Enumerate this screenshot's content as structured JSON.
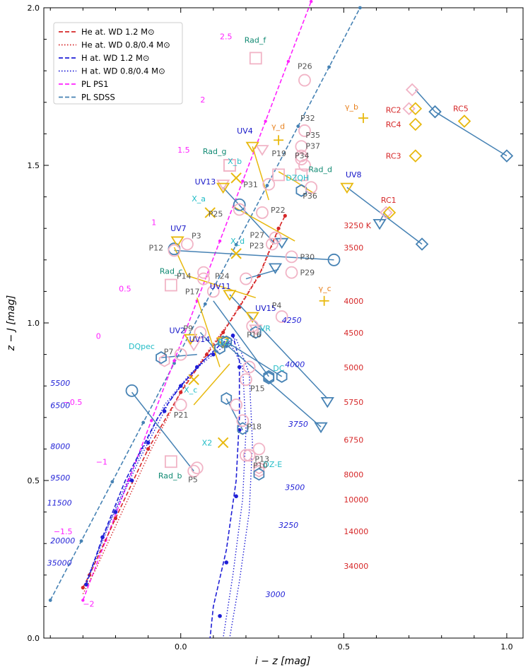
{
  "chart_data": {
    "type": "scatter",
    "xlabel": "i − z  [mag]",
    "ylabel": "z − J  [mag]",
    "xlim": [
      -0.42,
      1.05
    ],
    "ylim": [
      0.0,
      2.0
    ],
    "x_ticks": [
      "0.0",
      "0.5",
      "1.0"
    ],
    "x_tick_values": [
      0,
      0.5,
      1.0
    ],
    "y_ticks": [
      "0.0",
      "0.5",
      "1.0",
      "1.5",
      "2.0"
    ],
    "y_tick_values": [
      0,
      0.5,
      1.0,
      1.5,
      2.0
    ],
    "legend_position": "top-left",
    "legend": [
      {
        "label": "He at. WD 1.2 M⊙",
        "color": "#d62728",
        "dash": "dashed"
      },
      {
        "label": "He at. WD 0.8/0.4 M⊙",
        "color": "#d62728",
        "dash": "dotted"
      },
      {
        "label": "H at. WD 1.2 M⊙",
        "color": "#1f1fd6",
        "dash": "dashed"
      },
      {
        "label": "H at. WD 0.8/0.4 M⊙",
        "color": "#1f1fd6",
        "dash": "dotted"
      },
      {
        "label": "PL PS1",
        "color": "#ff22ff",
        "dash": "dashed"
      },
      {
        "label": "PL SDSS",
        "color": "#4682b4",
        "dash": "dashed"
      }
    ],
    "colors": {
      "he": "#d62728",
      "h": "#1f1fd6",
      "ps1": "#ff22ff",
      "sdss": "#4682b4",
      "uv": "#1515c8",
      "rad": "#118a73",
      "cyan": "#22bcc6",
      "gamma": "#e8821f",
      "yellow": "#e8b90f",
      "pink": "#f1b4c6",
      "steel": "#4682b4",
      "rc": "#d62728",
      "gray": "#555555"
    },
    "series": [
      {
        "name": "PL PS1",
        "line": [
          [
            -0.3,
            0.12
          ],
          [
            0.4,
            2.02
          ]
        ],
        "labels": [
          {
            "text": "2.5",
            "x": 0.12,
            "y": 1.9
          },
          {
            "text": "2",
            "x": 0.06,
            "y": 1.7
          },
          {
            "text": "1.5",
            "x": -0.01,
            "y": 1.54
          },
          {
            "text": "1",
            "x": -0.09,
            "y": 1.31
          },
          {
            "text": "0.5",
            "x": -0.19,
            "y": 1.1
          },
          {
            "text": "0",
            "x": -0.26,
            "y": 0.95
          },
          {
            "text": "−0.5",
            "x": -0.36,
            "y": 0.74
          },
          {
            "text": "−1",
            "x": -0.26,
            "y": 0.55
          },
          {
            "text": "−1.5",
            "x": -0.39,
            "y": 0.33
          },
          {
            "text": "−2",
            "x": -0.3,
            "y": 0.1
          }
        ]
      },
      {
        "name": "PL SDSS",
        "line": [
          [
            -0.4,
            0.12
          ],
          [
            0.55,
            2.0
          ]
        ]
      }
    ],
    "temp_labels_h": [
      "5500",
      "6500",
      "8000",
      "9500",
      "11500",
      "20000",
      "35000",
      "4250",
      "4000",
      "3750",
      "3500",
      "3250",
      "3000"
    ],
    "temp_labels_he": [
      "3250 K",
      "3500",
      "4000",
      "4500",
      "5000",
      "5750",
      "6750",
      "8000",
      "10000",
      "14000",
      "34000"
    ],
    "points": [
      {
        "label": "UV2",
        "marker": "triangle-down",
        "x": 0.03,
        "y": 0.95
      },
      {
        "label": "UV4",
        "marker": "triangle-down",
        "x": 0.22,
        "y": 1.56
      },
      {
        "label": "UV7",
        "marker": "triangle-down",
        "x": -0.01,
        "y": 1.26
      },
      {
        "label": "UV8",
        "marker": "triangle-down",
        "x": 0.51,
        "y": 1.43
      },
      {
        "label": "UV11",
        "marker": "triangle-down",
        "x": 0.15,
        "y": 1.09
      },
      {
        "label": "UV13",
        "marker": "triangle-down",
        "x": 0.13,
        "y": 1.43
      },
      {
        "label": "UV14",
        "marker": "triangle-down",
        "x": 0.13,
        "y": 0.94
      },
      {
        "label": "UV15",
        "marker": "triangle-down",
        "x": 0.22,
        "y": 1.02
      },
      {
        "label": "Rad_b",
        "marker": "square",
        "x": -0.03,
        "y": 0.56
      },
      {
        "label": "Rad_c",
        "marker": "square",
        "x": -0.03,
        "y": 1.12
      },
      {
        "label": "Rad_d",
        "marker": "square",
        "x": 0.37,
        "y": 1.47
      },
      {
        "label": "Rad_f",
        "marker": "square",
        "x": 0.23,
        "y": 1.84
      },
      {
        "label": "Rad_g",
        "marker": "square",
        "x": 0.15,
        "y": 1.5
      },
      {
        "label": "X_a",
        "marker": "x",
        "x": 0.09,
        "y": 1.35
      },
      {
        "label": "X_b",
        "marker": "x",
        "x": 0.17,
        "y": 1.46
      },
      {
        "label": "X_c",
        "marker": "x",
        "x": 0.04,
        "y": 0.82
      },
      {
        "label": "X_d",
        "marker": "x",
        "x": 0.17,
        "y": 1.22
      },
      {
        "label": "X2",
        "marker": "x",
        "x": 0.13,
        "y": 0.62
      },
      {
        "label": "γ_b",
        "marker": "plus",
        "x": 0.56,
        "y": 1.65
      },
      {
        "label": "γ_c",
        "marker": "plus",
        "x": 0.44,
        "y": 1.07
      },
      {
        "label": "γ_d",
        "marker": "plus",
        "x": 0.3,
        "y": 1.58
      },
      {
        "label": "RC1",
        "marker": "diamond",
        "x": 0.64,
        "y": 1.35
      },
      {
        "label": "RC2",
        "marker": "diamond",
        "x": 0.72,
        "y": 1.68
      },
      {
        "label": "RC3",
        "marker": "diamond",
        "x": 0.72,
        "y": 1.53
      },
      {
        "label": "RC4",
        "marker": "diamond",
        "x": 0.72,
        "y": 1.63
      },
      {
        "label": "RC5",
        "marker": "diamond",
        "x": 0.87,
        "y": 1.64
      },
      {
        "label": "DQpec",
        "marker": "hexagon",
        "x": -0.06,
        "y": 0.89
      },
      {
        "label": "DZQH",
        "marker": "hexagon",
        "x": 0.37,
        "y": 1.42
      },
      {
        "label": "DC",
        "marker": "hexagon",
        "x": 0.27,
        "y": 0.83
      },
      {
        "label": "DZ",
        "marker": "hexagon",
        "x": 0.14,
        "y": 0.94
      },
      {
        "label": "DZ-E",
        "marker": "hexagon",
        "x": 0.24,
        "y": 0.52
      },
      {
        "label": "VR",
        "marker": "hexagon",
        "x": 0.23,
        "y": 0.97
      },
      {
        "label": "P3",
        "marker": "circle",
        "x": 0.02,
        "y": 1.25
      },
      {
        "label": "P4",
        "marker": "circle",
        "x": 0.31,
        "y": 1.02
      },
      {
        "label": "P5",
        "marker": "circle",
        "x": 0.04,
        "y": 0.53
      },
      {
        "label": "P7",
        "marker": "circle",
        "x": 0.0,
        "y": 0.9
      },
      {
        "label": "P9",
        "marker": "circle",
        "x": 0.06,
        "y": 0.97
      },
      {
        "label": "P10",
        "marker": "circle",
        "x": 0.2,
        "y": 0.58
      },
      {
        "label": "P12",
        "marker": "circle",
        "x": -0.02,
        "y": 1.23
      },
      {
        "label": "P13",
        "marker": "circle",
        "x": 0.24,
        "y": 0.6
      },
      {
        "label": "P14",
        "marker": "circle",
        "x": 0.07,
        "y": 1.14
      },
      {
        "label": "P15",
        "marker": "circle",
        "x": 0.2,
        "y": 0.82
      },
      {
        "label": "P16",
        "marker": "circle",
        "x": 0.22,
        "y": 0.99
      },
      {
        "label": "P17",
        "marker": "circle",
        "x": 0.1,
        "y": 1.1
      },
      {
        "label": "P18",
        "marker": "circle",
        "x": 0.19,
        "y": 0.69
      },
      {
        "label": "P19",
        "marker": "circle",
        "x": 0.37,
        "y": 1.52
      },
      {
        "label": "P21",
        "marker": "circle",
        "x": 0.0,
        "y": 0.74
      },
      {
        "label": "P22",
        "marker": "circle",
        "x": 0.25,
        "y": 1.35
      },
      {
        "label": "P23",
        "marker": "circle",
        "x": 0.28,
        "y": 1.25
      },
      {
        "label": "P24",
        "marker": "circle",
        "x": 0.2,
        "y": 1.14
      },
      {
        "label": "P25",
        "marker": "circle",
        "x": 0.18,
        "y": 1.36
      },
      {
        "label": "P26",
        "marker": "circle",
        "x": 0.38,
        "y": 1.77
      },
      {
        "label": "P27",
        "marker": "circle",
        "x": 0.29,
        "y": 1.27
      },
      {
        "label": "P29",
        "marker": "circle",
        "x": 0.34,
        "y": 1.16
      },
      {
        "label": "P30",
        "marker": "circle",
        "x": 0.34,
        "y": 1.21
      },
      {
        "label": "P31",
        "marker": "circle",
        "x": 0.27,
        "y": 1.44
      },
      {
        "label": "P32",
        "marker": "circle",
        "x": 0.38,
        "y": 1.61
      },
      {
        "label": "P34",
        "marker": "circle",
        "x": 0.38,
        "y": 1.5
      },
      {
        "label": "P35",
        "marker": "circle",
        "x": 0.37,
        "y": 1.56
      },
      {
        "label": "P36",
        "marker": "circle",
        "x": 0.4,
        "y": 1.43
      },
      {
        "label": "P37",
        "marker": "circle",
        "x": 0.37,
        "y": 1.53
      }
    ]
  }
}
